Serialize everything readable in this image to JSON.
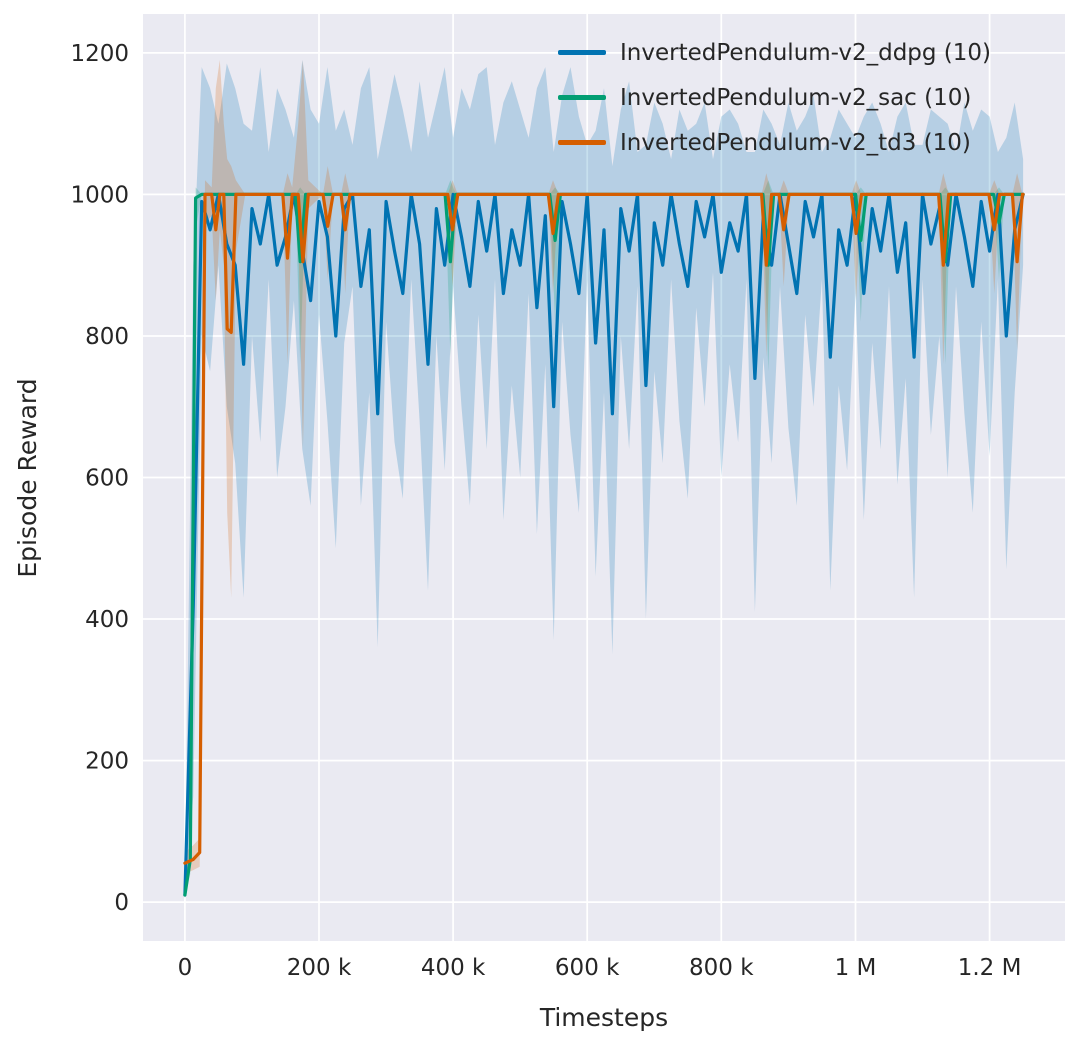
{
  "figure": {
    "bg": "#ffffff",
    "axes_bg": "#eaeaf2",
    "grid_color": "#ffffff",
    "tick_color": "#262626"
  },
  "chart_data": {
    "type": "line",
    "title": "",
    "xlabel": "Timesteps",
    "ylabel": "Episode Reward",
    "x_range": [
      -62500,
      1312500
    ],
    "y_range": [
      -55,
      1255
    ],
    "grid": true,
    "legend_position": "upper right inside",
    "x_ticks": [
      [
        0,
        "0"
      ],
      [
        200000,
        "200 k"
      ],
      [
        400000,
        "400 k"
      ],
      [
        600000,
        "600 k"
      ],
      [
        800000,
        "800 k"
      ],
      [
        1000000,
        "1 M"
      ],
      [
        1200000,
        "1.2 M"
      ]
    ],
    "y_ticks": [
      [
        0,
        "0"
      ],
      [
        200,
        "200"
      ],
      [
        400,
        "400"
      ],
      [
        600,
        "600"
      ],
      [
        800,
        "800"
      ],
      [
        1000,
        "1000"
      ],
      [
        1200,
        "1200"
      ]
    ],
    "series": [
      {
        "label": "InvertedPendulum-v2_ddpg (10)",
        "color": "#0173b2",
        "points": [
          [
            0,
            10,
            5,
            15
          ],
          [
            12500,
            420,
            150,
            900
          ],
          [
            25000,
            990,
            800,
            1180
          ],
          [
            37500,
            950,
            750,
            1150
          ],
          [
            50000,
            1000,
            900,
            1100
          ],
          [
            62500,
            930,
            700,
            1185
          ],
          [
            75000,
            900,
            620,
            1150
          ],
          [
            87500,
            760,
            430,
            1100
          ],
          [
            100000,
            980,
            800,
            1090
          ],
          [
            112500,
            930,
            650,
            1180
          ],
          [
            125000,
            1000,
            880,
            1060
          ],
          [
            137500,
            900,
            600,
            1150
          ],
          [
            150000,
            940,
            700,
            1120
          ],
          [
            162500,
            1000,
            850,
            1080
          ],
          [
            175000,
            920,
            640,
            1190
          ],
          [
            187500,
            850,
            560,
            1120
          ],
          [
            200000,
            990,
            830,
            1100
          ],
          [
            212500,
            940,
            680,
            1180
          ],
          [
            225000,
            800,
            500,
            1090
          ],
          [
            237500,
            980,
            790,
            1120
          ],
          [
            250000,
            1000,
            870,
            1070
          ],
          [
            262500,
            870,
            560,
            1150
          ],
          [
            275000,
            950,
            720,
            1180
          ],
          [
            287500,
            690,
            360,
            1050
          ],
          [
            300000,
            990,
            820,
            1110
          ],
          [
            312500,
            920,
            650,
            1170
          ],
          [
            325000,
            860,
            570,
            1120
          ],
          [
            337500,
            1000,
            880,
            1060
          ],
          [
            350000,
            930,
            680,
            1160
          ],
          [
            362500,
            760,
            440,
            1080
          ],
          [
            375000,
            980,
            800,
            1130
          ],
          [
            387500,
            900,
            610,
            1180
          ],
          [
            400000,
            1000,
            870,
            1080
          ],
          [
            412500,
            940,
            700,
            1150
          ],
          [
            425000,
            870,
            560,
            1120
          ],
          [
            437500,
            990,
            830,
            1170
          ],
          [
            450000,
            920,
            640,
            1180
          ],
          [
            462500,
            1000,
            880,
            1070
          ],
          [
            475000,
            860,
            540,
            1130
          ],
          [
            487500,
            950,
            730,
            1160
          ],
          [
            500000,
            900,
            600,
            1120
          ],
          [
            512500,
            1000,
            860,
            1080
          ],
          [
            525000,
            840,
            520,
            1150
          ],
          [
            537500,
            970,
            760,
            1180
          ],
          [
            550000,
            700,
            370,
            1060
          ],
          [
            562500,
            990,
            820,
            1140
          ],
          [
            575000,
            930,
            660,
            1180
          ],
          [
            587500,
            860,
            550,
            1110
          ],
          [
            600000,
            1000,
            880,
            1070
          ],
          [
            612500,
            790,
            460,
            1090
          ],
          [
            625000,
            950,
            720,
            1150
          ],
          [
            637500,
            690,
            350,
            1040
          ],
          [
            650000,
            980,
            800,
            1120
          ],
          [
            662500,
            920,
            640,
            1160
          ],
          [
            675000,
            1000,
            870,
            1060
          ],
          [
            687500,
            730,
            400,
            1070
          ],
          [
            700000,
            960,
            750,
            1130
          ],
          [
            712500,
            900,
            620,
            1100
          ],
          [
            725000,
            1000,
            880,
            1050
          ],
          [
            737500,
            930,
            680,
            1120
          ],
          [
            750000,
            870,
            570,
            1090
          ],
          [
            762500,
            990,
            840,
            1100
          ],
          [
            775000,
            940,
            700,
            1130
          ],
          [
            787500,
            1000,
            890,
            1050
          ],
          [
            800000,
            890,
            600,
            1110
          ],
          [
            812500,
            960,
            760,
            1120
          ],
          [
            825000,
            920,
            650,
            1100
          ],
          [
            837500,
            1000,
            880,
            1060
          ],
          [
            850000,
            740,
            410,
            1060
          ],
          [
            862500,
            970,
            770,
            1120
          ],
          [
            875000,
            900,
            620,
            1100
          ],
          [
            887500,
            1000,
            870,
            1070
          ],
          [
            900000,
            930,
            670,
            1130
          ],
          [
            912500,
            860,
            560,
            1090
          ],
          [
            925000,
            990,
            830,
            1110
          ],
          [
            937500,
            940,
            700,
            1140
          ],
          [
            950000,
            1000,
            880,
            1060
          ],
          [
            962500,
            770,
            440,
            1080
          ],
          [
            975000,
            950,
            730,
            1120
          ],
          [
            987500,
            900,
            610,
            1100
          ],
          [
            1000000,
            1000,
            860,
            1080
          ],
          [
            1012500,
            860,
            540,
            1110
          ],
          [
            1025000,
            980,
            790,
            1130
          ],
          [
            1037500,
            920,
            640,
            1100
          ],
          [
            1050000,
            1000,
            870,
            1060
          ],
          [
            1062500,
            890,
            590,
            1110
          ],
          [
            1075000,
            960,
            740,
            1130
          ],
          [
            1087500,
            770,
            430,
            1070
          ],
          [
            1100000,
            1000,
            880,
            1070
          ],
          [
            1112500,
            930,
            660,
            1120
          ],
          [
            1125000,
            980,
            800,
            1110
          ],
          [
            1137500,
            900,
            600,
            1100
          ],
          [
            1150000,
            1000,
            870,
            1060
          ],
          [
            1162500,
            940,
            690,
            1130
          ],
          [
            1175000,
            870,
            550,
            1090
          ],
          [
            1187500,
            990,
            820,
            1120
          ],
          [
            1200000,
            920,
            630,
            1110
          ],
          [
            1212500,
            1000,
            880,
            1060
          ],
          [
            1225000,
            800,
            470,
            1080
          ],
          [
            1237500,
            950,
            720,
            1130
          ],
          [
            1250000,
            1000,
            900,
            1050
          ]
        ]
      },
      {
        "label": "InvertedPendulum-v2_sac (10)",
        "color": "#029e73",
        "points": [
          [
            0,
            10,
            5,
            15
          ],
          [
            8000,
            60,
            40,
            90
          ],
          [
            16000,
            995,
            950,
            1010
          ],
          [
            25000,
            1000,
            1000,
            1000
          ],
          [
            100000,
            1000,
            1000,
            1000
          ],
          [
            165000,
            1000,
            1000,
            1000
          ],
          [
            172000,
            905,
            760,
            1010
          ],
          [
            180000,
            1000,
            1000,
            1000
          ],
          [
            300000,
            1000,
            1000,
            1000
          ],
          [
            388000,
            1000,
            1000,
            1000
          ],
          [
            396000,
            905,
            770,
            1020
          ],
          [
            404000,
            1000,
            1000,
            1000
          ],
          [
            544000,
            1000,
            1000,
            1000
          ],
          [
            552000,
            935,
            820,
            1010
          ],
          [
            560000,
            1000,
            1000,
            1000
          ],
          [
            700000,
            1000,
            1000,
            1000
          ],
          [
            862000,
            1000,
            1000,
            1000
          ],
          [
            870000,
            900,
            750,
            1020
          ],
          [
            878000,
            1000,
            1000,
            1000
          ],
          [
            1000000,
            1000,
            1000,
            1000
          ],
          [
            1008000,
            935,
            820,
            1010
          ],
          [
            1016000,
            1000,
            1000,
            1000
          ],
          [
            1126000,
            1000,
            1000,
            1000
          ],
          [
            1134000,
            905,
            760,
            1010
          ],
          [
            1142000,
            1000,
            1000,
            1000
          ],
          [
            1206000,
            1000,
            1000,
            1000
          ],
          [
            1214000,
            960,
            880,
            1010
          ],
          [
            1222000,
            1000,
            1000,
            1000
          ],
          [
            1250000,
            1000,
            1000,
            1000
          ]
        ]
      },
      {
        "label": "InvertedPendulum-v2_td3 (10)",
        "color": "#d55e00",
        "points": [
          [
            0,
            55,
            40,
            70
          ],
          [
            12000,
            60,
            45,
            80
          ],
          [
            22000,
            70,
            50,
            90
          ],
          [
            30000,
            1000,
            960,
            1020
          ],
          [
            40000,
            1000,
            970,
            1010
          ],
          [
            46000,
            950,
            850,
            1150
          ],
          [
            52000,
            1000,
            950,
            1190
          ],
          [
            58000,
            1000,
            900,
            1100
          ],
          [
            63000,
            810,
            550,
            1050
          ],
          [
            69000,
            805,
            430,
            1040
          ],
          [
            76000,
            1000,
            920,
            1020
          ],
          [
            90000,
            1000,
            1000,
            1000
          ],
          [
            146000,
            1000,
            1000,
            1000
          ],
          [
            153000,
            910,
            760,
            1030
          ],
          [
            160000,
            1000,
            990,
            1010
          ],
          [
            169000,
            1000,
            950,
            1100
          ],
          [
            176000,
            905,
            640,
            1190
          ],
          [
            184000,
            1000,
            980,
            1020
          ],
          [
            206000,
            1000,
            1000,
            1000
          ],
          [
            213000,
            955,
            880,
            1040
          ],
          [
            221000,
            1000,
            1000,
            1000
          ],
          [
            233000,
            1000,
            1000,
            1000
          ],
          [
            239000,
            950,
            860,
            1030
          ],
          [
            246000,
            1000,
            1000,
            1000
          ],
          [
            330000,
            1000,
            1000,
            1000
          ],
          [
            392000,
            1000,
            1000,
            1000
          ],
          [
            399000,
            950,
            870,
            1020
          ],
          [
            407000,
            1000,
            1000,
            1000
          ],
          [
            470000,
            1000,
            1000,
            1000
          ],
          [
            542000,
            1000,
            1000,
            1000
          ],
          [
            549000,
            945,
            860,
            1020
          ],
          [
            557000,
            1000,
            1000,
            1000
          ],
          [
            710000,
            1000,
            1000,
            1000
          ],
          [
            860000,
            1000,
            1000,
            1000
          ],
          [
            867000,
            900,
            770,
            1030
          ],
          [
            875000,
            1000,
            1000,
            1000
          ],
          [
            886000,
            1000,
            1000,
            1000
          ],
          [
            893000,
            950,
            870,
            1020
          ],
          [
            901000,
            1000,
            1000,
            1000
          ],
          [
            994000,
            1000,
            1000,
            1000
          ],
          [
            1001000,
            945,
            850,
            1020
          ],
          [
            1009000,
            1000,
            1000,
            1000
          ],
          [
            1124000,
            1000,
            1000,
            1000
          ],
          [
            1131000,
            900,
            760,
            1030
          ],
          [
            1139000,
            1000,
            1000,
            1000
          ],
          [
            1199000,
            1000,
            1000,
            1000
          ],
          [
            1207000,
            950,
            860,
            1020
          ],
          [
            1215000,
            1000,
            1000,
            1000
          ],
          [
            1234000,
            1000,
            1000,
            1000
          ],
          [
            1241000,
            905,
            780,
            1030
          ],
          [
            1249000,
            1000,
            1000,
            1000
          ],
          [
            1250000,
            1000,
            1000,
            1000
          ]
        ]
      }
    ]
  }
}
